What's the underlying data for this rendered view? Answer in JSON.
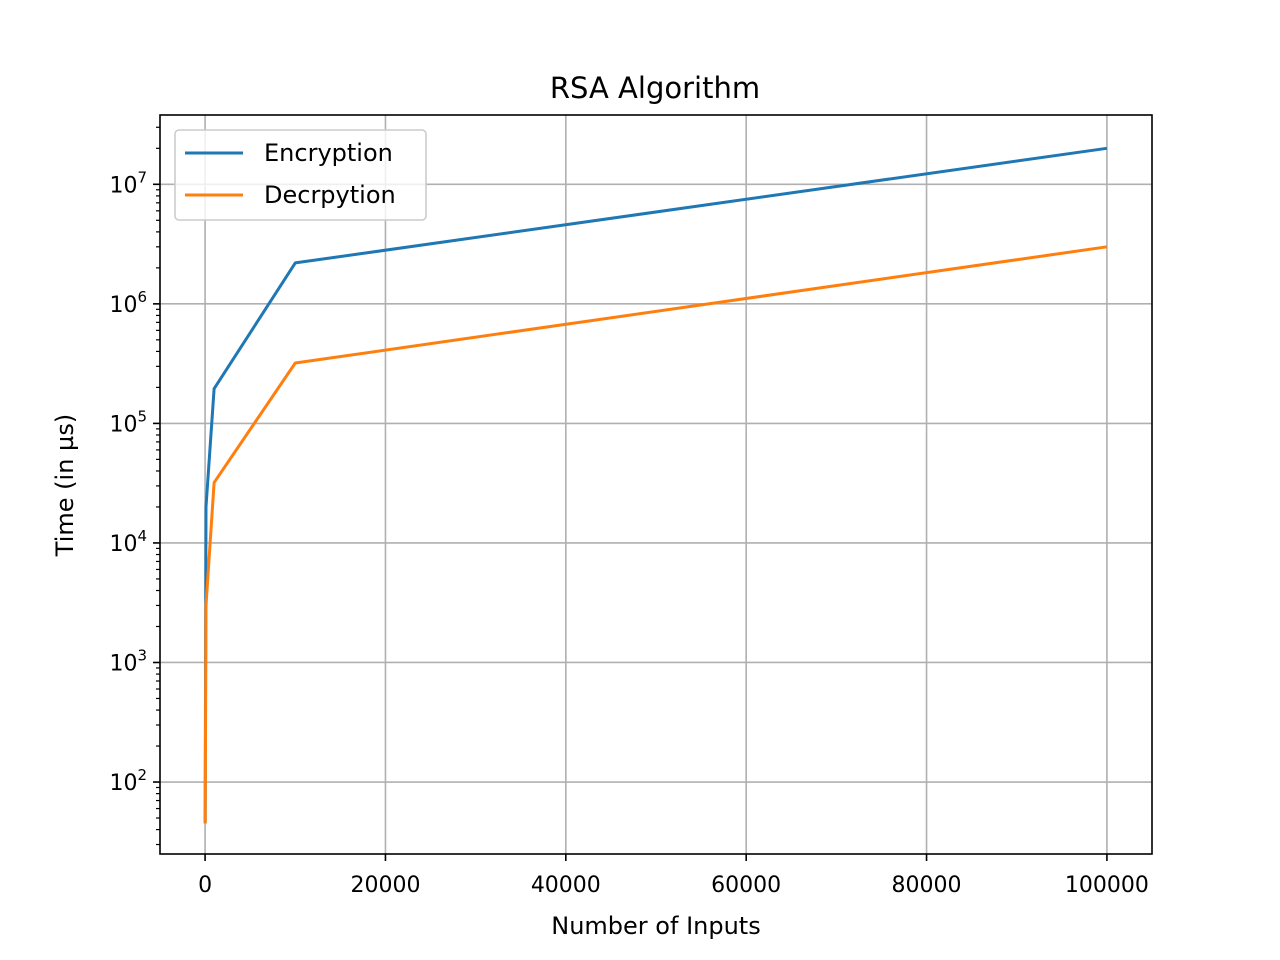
{
  "chart_data": {
    "type": "line",
    "title": "RSA Algorithm",
    "xlabel": "Number of Inputs",
    "ylabel": "Time (in µs)",
    "x": [
      10,
      100,
      1000,
      10000,
      100000
    ],
    "series": [
      {
        "name": "Encryption",
        "color": "#1f77b4",
        "values": [
          45,
          20000,
          195000,
          2200000,
          20000000
        ]
      },
      {
        "name": "Decrpytion",
        "color": "#ff7f0e",
        "values": [
          45,
          3000,
          32000,
          320000,
          3000000
        ]
      }
    ],
    "xlim": [
      -5000,
      105000
    ],
    "ylim": [
      25,
      38000000
    ],
    "yscale": "log",
    "xticks": [
      0,
      20000,
      40000,
      60000,
      80000,
      100000
    ],
    "xtick_labels": [
      "0",
      "20000",
      "40000",
      "60000",
      "80000",
      "100000"
    ],
    "yticks": [
      100,
      1000,
      10000,
      100000,
      1000000,
      10000000
    ],
    "ytick_labels": [
      {
        "base": "10",
        "exp": "2"
      },
      {
        "base": "10",
        "exp": "3"
      },
      {
        "base": "10",
        "exp": "4"
      },
      {
        "base": "10",
        "exp": "5"
      },
      {
        "base": "10",
        "exp": "6"
      },
      {
        "base": "10",
        "exp": "7"
      }
    ],
    "grid": true,
    "legend_position": "top-left"
  }
}
